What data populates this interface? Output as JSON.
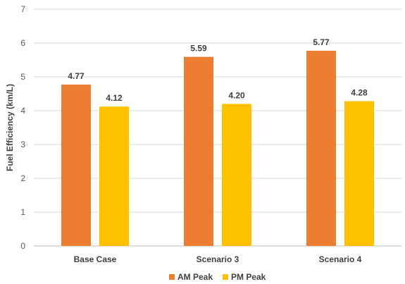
{
  "chart_data": {
    "type": "bar",
    "categories": [
      "Base Case",
      "Scenario 3",
      "Scenario 4"
    ],
    "series": [
      {
        "name": "AM Peak",
        "values": [
          4.77,
          5.59,
          5.77
        ],
        "labels": [
          "4.77",
          "5.59",
          "5.77"
        ],
        "color": "#ED7D31"
      },
      {
        "name": "PM Peak",
        "values": [
          4.12,
          4.2,
          4.28
        ],
        "labels": [
          "4.12",
          "4.20",
          "4.28"
        ],
        "color": "#FFC000"
      }
    ],
    "ylabel": "Fuel Efficiency (km/L)",
    "xlabel": "",
    "ylim": [
      0,
      7
    ],
    "yticks": [
      "0",
      "1",
      "2",
      "3",
      "4",
      "5",
      "6",
      "7"
    ],
    "grid": true,
    "legend_position": "bottom"
  }
}
